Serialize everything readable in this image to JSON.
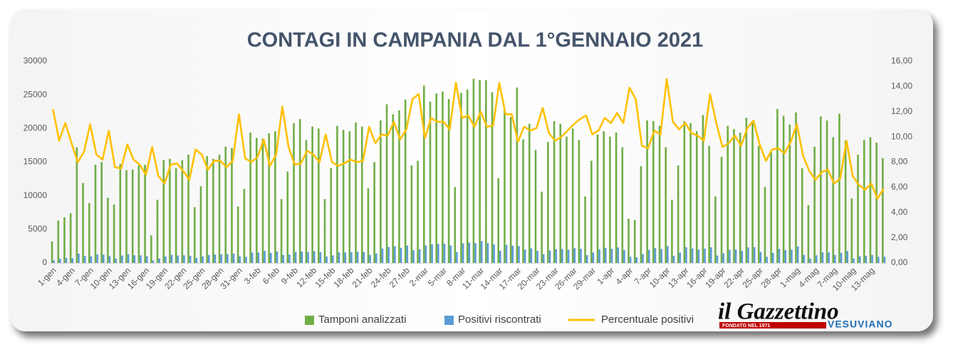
{
  "chart_data": {
    "type": "bar",
    "title": "CONTAGI IN CAMPANIA DAL 1°GENNAIO 2021",
    "categories": [
      "1-gen",
      null,
      null,
      "4-gen",
      null,
      null,
      "7-gen",
      null,
      null,
      "10-gen",
      null,
      null,
      "13-gen",
      null,
      null,
      "16-gen",
      null,
      null,
      "19-gen",
      null,
      null,
      "22-gen",
      null,
      null,
      "25-gen",
      null,
      null,
      "28-gen",
      null,
      null,
      "31-gen",
      null,
      null,
      "3-feb",
      null,
      null,
      "6-feb",
      null,
      null,
      "9-feb",
      null,
      null,
      "12-feb",
      null,
      null,
      "15-feb",
      null,
      null,
      "18-feb",
      null,
      null,
      "21-feb",
      null,
      null,
      "24-feb",
      null,
      null,
      "27-feb",
      null,
      null,
      "2-mar",
      null,
      null,
      "5-mar",
      null,
      null,
      "8-mar",
      null,
      null,
      "11-mar",
      null,
      null,
      "14-mar",
      null,
      null,
      "17-mar",
      null,
      null,
      "20-mar",
      null,
      null,
      "23-mar",
      null,
      null,
      "26-mar",
      null,
      null,
      "29-mar",
      null,
      null,
      "1-apr",
      null,
      null,
      "4-apr",
      null,
      null,
      "7-apr",
      null,
      null,
      "10-apr",
      null,
      null,
      "13-apr",
      null,
      null,
      "16-apr",
      null,
      null,
      "19-apr",
      null,
      null,
      "22-apr",
      null,
      null,
      "25-apr",
      null,
      null,
      "28-apr",
      null,
      null,
      "1-mag",
      null,
      null,
      "4-mag",
      null,
      null,
      "7-mag",
      null,
      null,
      "10-mag",
      null,
      null,
      "13-mag",
      null,
      null
    ],
    "series": [
      {
        "name": "Tamponi analizzati",
        "type": "bar",
        "color": "#70ad47",
        "values": [
          3200,
          6300,
          6800,
          7400,
          17200,
          11900,
          8900,
          14600,
          15000,
          9700,
          8700,
          14700,
          13800,
          13900,
          14500,
          14600,
          4100,
          9400,
          15300,
          15500,
          14100,
          15300,
          16100,
          8300,
          11400,
          15900,
          15500,
          16100,
          17300,
          17100,
          8400,
          11000,
          19400,
          18600,
          18500,
          19300,
          19600,
          9500,
          13600,
          20800,
          21400,
          18300,
          20300,
          20000,
          9500,
          14100,
          20400,
          19800,
          19600,
          20900,
          20300,
          11100,
          15000,
          21200,
          23600,
          22100,
          22700,
          24300,
          14500,
          15200,
          26400,
          24000,
          25200,
          25500,
          24400,
          11300,
          25300,
          25800,
          27400,
          27200,
          27200,
          25400,
          12600,
          22800,
          21700,
          26100,
          18400,
          20700,
          16800,
          10600,
          18000,
          21100,
          20700,
          18800,
          20000,
          18300,
          9900,
          15200,
          19100,
          19600,
          18800,
          19400,
          17200,
          6600,
          6400,
          14400,
          21200,
          21100,
          20400,
          17200,
          9400,
          14500,
          21100,
          20800,
          19600,
          22000,
          17400,
          9900,
          15800,
          20400,
          19900,
          19400,
          21600,
          20800,
          17400,
          11300,
          16500,
          22900,
          21900,
          20600,
          22400,
          14100,
          8600,
          17300,
          21800,
          21200,
          18700,
          22200,
          18200,
          9600,
          16100,
          18300,
          18700,
          17900,
          15600
        ]
      },
      {
        "name": "Positivi riscontrati",
        "type": "bar",
        "color": "#5b9bd5",
        "values": [
          390,
          610,
          755,
          700,
          1380,
          1050,
          980,
          1260,
          1230,
          1020,
          660,
          1100,
          1300,
          1140,
          1130,
          1020,
          380,
          650,
          960,
          1210,
          1110,
          1120,
          1060,
          750,
          980,
          1180,
          1260,
          1300,
          1310,
          1390,
          990,
          910,
          1550,
          1560,
          1810,
          1490,
          1690,
          1180,
          1250,
          1620,
          1690,
          1630,
          1750,
          1600,
          970,
          1130,
          1570,
          1560,
          1610,
          1670,
          1640,
          1200,
          1430,
          2160,
          2380,
          2480,
          2220,
          2580,
          1890,
          2040,
          2610,
          2760,
          2820,
          2860,
          2590,
          1620,
          2910,
          3020,
          2960,
          3260,
          2940,
          2770,
          1800,
          2690,
          2560,
          2510,
          1990,
          2170,
          1800,
          1300,
          1850,
          2050,
          2070,
          1970,
          2200,
          2090,
          1160,
          1550,
          2010,
          2250,
          2090,
          2310,
          1910,
          920,
          830,
          1340,
          1930,
          2220,
          2080,
          2510,
          1050,
          1540,
          2340,
          2140,
          1980,
          2130,
          2330,
          1100,
          1450,
          1940,
          2010,
          1800,
          2310,
          2350,
          1640,
          920,
          1490,
          2080,
          1910,
          1980,
          2460,
          1200,
          630,
          1140,
          1570,
          1570,
          1180,
          1490,
          1770,
          660,
          1000,
          1060,
          1180,
          910,
          920
        ]
      },
      {
        "name": "Percentuale positivi",
        "type": "line",
        "axis": "y2",
        "color": "#ffc000",
        "values": [
          12.2,
          9.7,
          11.1,
          9.5,
          8.0,
          8.8,
          11.0,
          8.6,
          8.2,
          10.5,
          7.6,
          7.5,
          9.4,
          8.2,
          7.8,
          7.0,
          9.2,
          6.9,
          6.3,
          7.8,
          7.9,
          7.3,
          6.6,
          9.0,
          8.6,
          7.4,
          8.1,
          8.1,
          7.6,
          8.1,
          11.8,
          8.3,
          8.0,
          8.4,
          9.8,
          7.7,
          8.6,
          12.4,
          9.2,
          7.8,
          7.9,
          8.9,
          8.6,
          8.0,
          10.2,
          8.0,
          7.7,
          7.9,
          8.2,
          8.0,
          8.1,
          10.8,
          9.5,
          10.2,
          10.1,
          11.2,
          9.8,
          10.6,
          13.0,
          13.4,
          9.9,
          11.5,
          11.2,
          11.2,
          10.6,
          14.3,
          11.5,
          11.7,
          10.8,
          12.0,
          10.8,
          10.9,
          14.3,
          11.8,
          11.8,
          9.6,
          10.8,
          10.5,
          10.7,
          12.3,
          10.3,
          9.7,
          10.0,
          10.5,
          11.0,
          11.4,
          11.7,
          10.2,
          10.5,
          11.5,
          11.1,
          11.9,
          11.1,
          13.9,
          13.0,
          9.3,
          9.1,
          10.5,
          10.2,
          14.6,
          11.2,
          10.6,
          11.1,
          10.3,
          10.1,
          9.7,
          13.4,
          11.1,
          9.2,
          9.5,
          10.1,
          9.3,
          10.7,
          11.3,
          9.4,
          8.1,
          9.0,
          9.1,
          8.7,
          9.6,
          11.0,
          8.5,
          7.3,
          6.6,
          7.2,
          7.4,
          6.3,
          6.7,
          9.7,
          6.9,
          6.2,
          5.8,
          6.3,
          5.1,
          5.9
        ]
      }
    ],
    "ylim": [
      0,
      30000
    ],
    "yticks": [
      0,
      5000,
      10000,
      15000,
      20000,
      25000,
      30000
    ],
    "y2lim": [
      0,
      16
    ],
    "y2ticks": [
      {
        "value": 0,
        "label": "0,00"
      },
      {
        "value": 2,
        "label": "2,00"
      },
      {
        "value": 4,
        "label": "4,00"
      },
      {
        "value": 6,
        "label": "6,00"
      },
      {
        "value": 8,
        "label": "8,00"
      },
      {
        "value": 10,
        "label": "10,00"
      },
      {
        "value": 12,
        "label": "12,00"
      },
      {
        "value": 14,
        "label": "14,00"
      },
      {
        "value": 16,
        "label": "16,00"
      }
    ],
    "grid": false,
    "legend": "bottom"
  },
  "logo": {
    "name": "il Gazzettino",
    "tagline": "FONDATO NEL 1971",
    "edition": "VESUVIANO"
  }
}
